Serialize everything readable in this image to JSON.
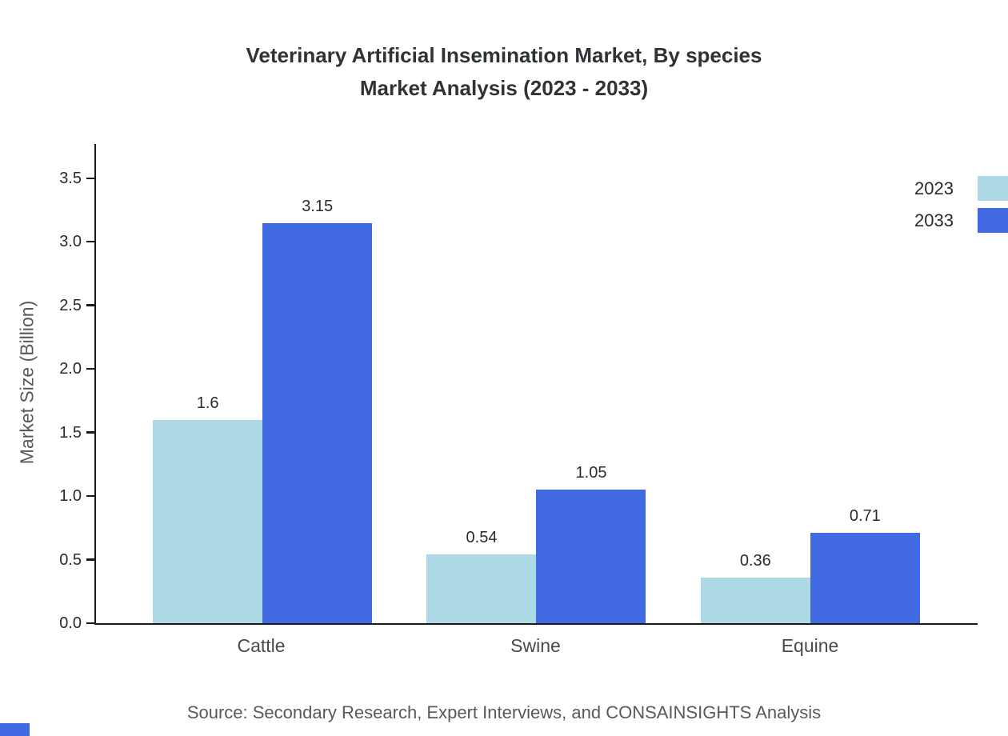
{
  "title": {
    "line1": "Veterinary Artificial Insemination Market, By species",
    "line2": "Market Analysis (2023 - 2033)"
  },
  "chart_data": {
    "type": "bar",
    "title": "Veterinary Artificial Insemination Market, By species Market Analysis (2023 - 2033)",
    "categories": [
      "Cattle",
      "Swine",
      "Equine"
    ],
    "series": [
      {
        "name": "2023",
        "color": "#ADD8E6",
        "values": [
          1.6,
          0.54,
          0.36
        ]
      },
      {
        "name": "2033",
        "color": "#4169E1",
        "values": [
          3.15,
          1.05,
          0.71
        ]
      }
    ],
    "xlabel": "",
    "ylabel": "Market Size (Billion)",
    "ylim": [
      0,
      3.5
    ],
    "yticks": [
      0.0,
      0.5,
      1.0,
      1.5,
      2.0,
      2.5,
      3.0,
      3.5
    ],
    "grid": false,
    "legend_position": "top-right"
  },
  "footer": {
    "source": "Source: Secondary Research, Expert Interviews, and CONSAINSIGHTS Analysis"
  },
  "colors": {
    "corner_mark": "#4169E1",
    "axis": "#1a1a1a"
  }
}
